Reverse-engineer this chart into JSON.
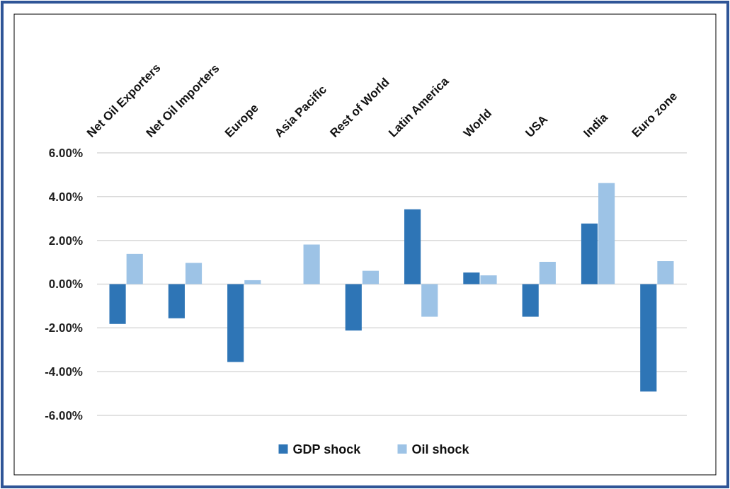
{
  "chart_data": {
    "type": "bar",
    "categories": [
      "Net Oil Exporters",
      "Net Oil Importers",
      "Europe",
      "Asia Pacific",
      "Rest of World",
      "Latin America",
      "World",
      "USA",
      "India",
      "Euro zone"
    ],
    "series": [
      {
        "name": "GDP shock",
        "color": "#2e75b6",
        "values": [
          -1.82,
          -1.56,
          -3.56,
          null,
          -2.12,
          3.42,
          0.53,
          -1.49,
          2.77,
          -4.91
        ]
      },
      {
        "name": "Oil shock",
        "color": "#9dc3e6",
        "values": [
          1.38,
          0.97,
          0.18,
          1.81,
          0.61,
          -1.49,
          0.4,
          1.02,
          4.62,
          1.05
        ]
      }
    ],
    "ylim": [
      -6,
      6
    ],
    "yticks": [
      {
        "value": -6,
        "label": "-6.00%"
      },
      {
        "value": -4,
        "label": "-4.00%"
      },
      {
        "value": -2,
        "label": "-2.00%"
      },
      {
        "value": 0,
        "label": "0.00%"
      },
      {
        "value": 2,
        "label": "2.00%"
      },
      {
        "value": 4,
        "label": "4.00%"
      },
      {
        "value": 6,
        "label": "6.00%"
      }
    ],
    "grid": "y",
    "legend": "bottom"
  }
}
